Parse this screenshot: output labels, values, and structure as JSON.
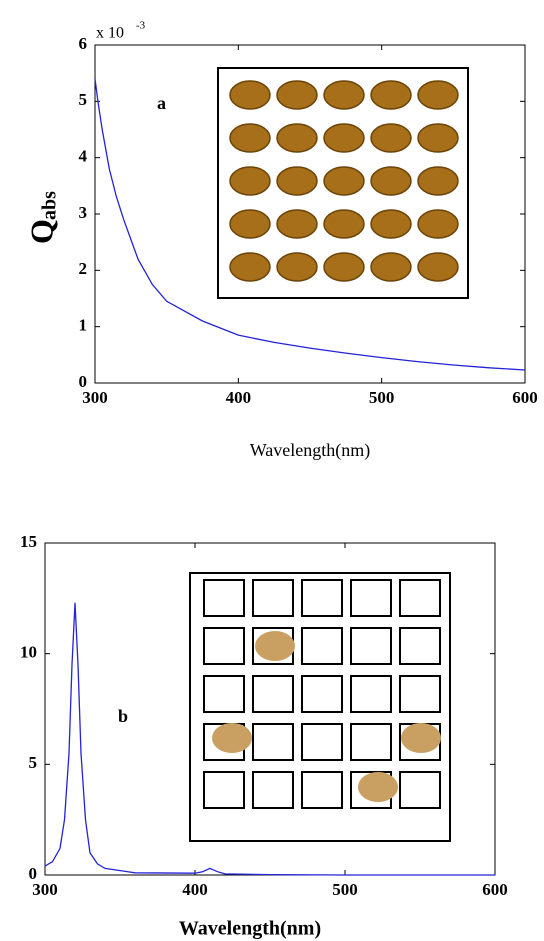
{
  "chart_data": [
    {
      "type": "line",
      "color": "#2323d8",
      "x": [
        300,
        302,
        305,
        310,
        315,
        320,
        330,
        340,
        350,
        375,
        400,
        425,
        450,
        475,
        500,
        525,
        550,
        575,
        600
      ],
      "values": [
        5.4,
        5.0,
        4.5,
        3.8,
        3.3,
        2.9,
        2.2,
        1.75,
        1.45,
        1.1,
        0.85,
        0.72,
        0.62,
        0.53,
        0.45,
        0.38,
        0.32,
        0.27,
        0.23
      ],
      "xlim": [
        300,
        600
      ],
      "ylim": [
        0,
        6
      ],
      "xticks": [
        300,
        400,
        500,
        600
      ],
      "yticks": [
        0,
        1,
        2,
        3,
        4,
        5,
        6
      ],
      "y_multiplier": "x 10",
      "y_multiplier_exponent": "-3",
      "y_label": "Q",
      "y_label_subscript": "abs",
      "x_label": "Wavelength(nm)",
      "annotation": "a"
    },
    {
      "type": "line",
      "color": "#2323d8",
      "x": [
        300,
        305,
        310,
        313,
        316,
        318,
        320,
        322,
        324,
        327,
        330,
        335,
        340,
        360,
        400,
        405,
        410,
        415,
        420,
        450,
        500,
        600
      ],
      "values": [
        0.4,
        0.6,
        1.2,
        2.5,
        5.5,
        9.5,
        12.3,
        9.5,
        5.5,
        2.5,
        1.0,
        0.5,
        0.3,
        0.1,
        0.08,
        0.15,
        0.3,
        0.15,
        0.05,
        0.02,
        0,
        0
      ],
      "xlim": [
        300,
        600
      ],
      "ylim": [
        0,
        15
      ],
      "xticks": [
        300,
        400,
        500,
        600
      ],
      "yticks": [
        0,
        5,
        10,
        15
      ],
      "x_label": "Wavelength(nm)",
      "annotation": "b"
    }
  ]
}
